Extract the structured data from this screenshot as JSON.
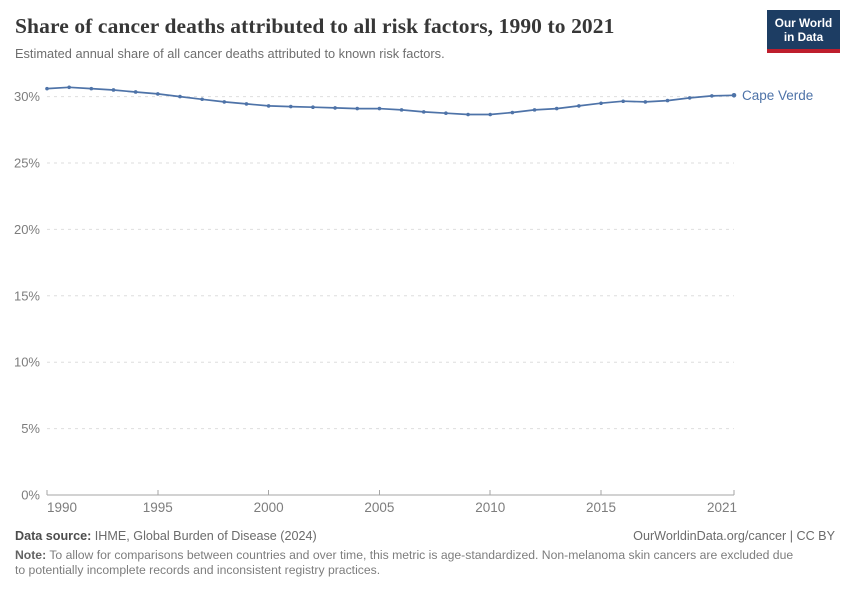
{
  "header": {
    "title": "Share of cancer deaths attributed to all risk factors, 1990 to 2021",
    "subtitle": "Estimated annual share of all cancer deaths attributed to known risk factors."
  },
  "logo": {
    "line1": "Our World",
    "line2": "in Data",
    "bg_color": "#1d3d63",
    "accent_color": "#be1e2d"
  },
  "footer": {
    "datasource_label": "Data source:",
    "datasource_value": "IHME, Global Burden of Disease (2024)",
    "license": "OurWorldinData.org/cancer | CC BY",
    "note_label": "Note:",
    "note_value": "To allow for comparisons between countries and over time, this metric is age-standardized. Non-melanoma skin cancers are excluded due to potentially incomplete records and inconsistent registry practices."
  },
  "chart_data": {
    "type": "line",
    "title": "Share of cancer deaths attributed to all risk factors, 1990 to 2021",
    "xlabel": "",
    "ylabel": "",
    "x_range": [
      1990,
      2021
    ],
    "ylim": [
      0,
      33
    ],
    "y_ticks": [
      0,
      5,
      10,
      15,
      20,
      25,
      30
    ],
    "y_tick_suffix": "%",
    "x_ticks": [
      1990,
      1995,
      2000,
      2005,
      2010,
      2015,
      2021
    ],
    "grid": "horizontal-dashed",
    "legend_position": "end-of-line-label",
    "x": [
      1990,
      1991,
      1992,
      1993,
      1994,
      1995,
      1996,
      1997,
      1998,
      1999,
      2000,
      2001,
      2002,
      2003,
      2004,
      2005,
      2006,
      2007,
      2008,
      2009,
      2010,
      2011,
      2012,
      2013,
      2014,
      2015,
      2016,
      2017,
      2018,
      2019,
      2020,
      2021
    ],
    "series": [
      {
        "name": "Cape Verde",
        "color": "#4e73a8",
        "values": [
          30.6,
          30.7,
          30.6,
          30.5,
          30.35,
          30.2,
          30.0,
          29.8,
          29.6,
          29.45,
          29.3,
          29.25,
          29.2,
          29.15,
          29.1,
          29.1,
          29.0,
          28.85,
          28.75,
          28.65,
          28.65,
          28.8,
          29.0,
          29.1,
          29.3,
          29.5,
          29.65,
          29.6,
          29.7,
          29.9,
          30.05,
          30.1
        ]
      }
    ],
    "colors": {
      "grid_line": "#dedede",
      "axis_line": "#a6a6a6",
      "tick_label": "#7d7d7d"
    }
  }
}
